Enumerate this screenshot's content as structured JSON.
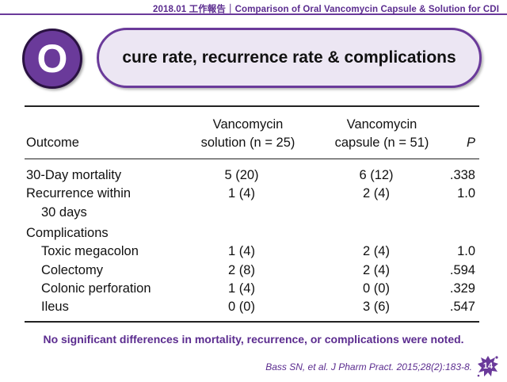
{
  "header": {
    "title": "2018.01 工作報告｜Comparison of Oral Vancomycin Capsule & Solution for CDI"
  },
  "section": {
    "letter": "O",
    "title": "cure rate, recurrence rate & complications"
  },
  "table": {
    "headers": {
      "outcome": "Outcome",
      "solution_line1": "Vancomycin",
      "solution_line2": "solution (n = 25)",
      "capsule_line1": "Vancomycin",
      "capsule_line2": "capsule (n = 51)",
      "p": "P"
    },
    "rows": [
      {
        "label": "30-Day mortality",
        "label2": "",
        "solution": "5 (20)",
        "capsule": "6 (12)",
        "p": ".338"
      },
      {
        "label": "Recurrence within",
        "label2": "30 days",
        "solution": "1 (4)",
        "capsule": "2 (4)",
        "p": "1.0"
      },
      {
        "label": "Complications",
        "label2": "",
        "solution": "",
        "capsule": "",
        "p": ""
      },
      {
        "label": "Toxic megacolon",
        "label2": "",
        "solution": "1 (4)",
        "capsule": "2 (4)",
        "p": "1.0"
      },
      {
        "label": "Colectomy",
        "label2": "",
        "solution": "2 (8)",
        "capsule": "2 (4)",
        "p": ".594"
      },
      {
        "label": "Colonic perforation",
        "label2": "",
        "solution": "1 (4)",
        "capsule": "0 (0)",
        "p": ".329"
      },
      {
        "label": "Ileus",
        "label2": "",
        "solution": "0 (0)",
        "capsule": "3 (6)",
        "p": ".547"
      }
    ]
  },
  "footer": {
    "note": "No significant differences in mortality, recurrence, or complications were noted.",
    "citation": "Bass SN, et al. J Pharm Pract. 2015;28(2):183-8.",
    "page": "14"
  },
  "colors": {
    "accent": "#6a3a9a",
    "accent_text": "#5b2c8f",
    "pill_fill": "#ece6f3"
  }
}
